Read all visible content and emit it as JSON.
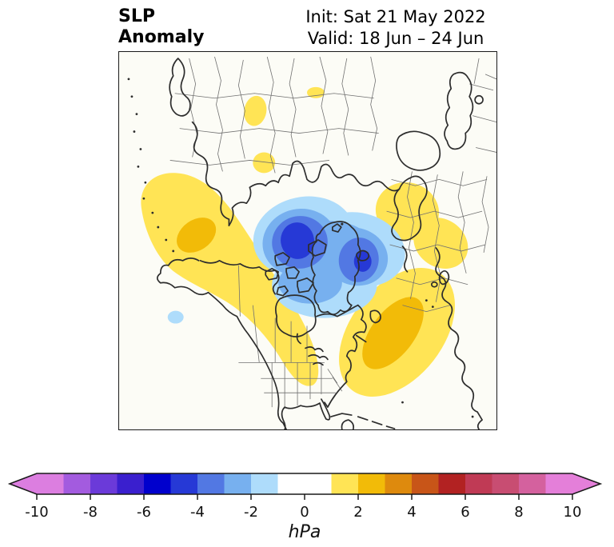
{
  "header": {
    "title_line1": "SLP",
    "title_line2": "Anomaly",
    "init_label": "Init: Sat 21 May 2022",
    "valid_label": "Valid: 18 Jun – 24 Jun"
  },
  "map": {
    "projection": "north-polar-stereographic",
    "background": "#FCFCF6",
    "coast_color": "#2d2d2d",
    "border_color": "#707070",
    "anomalies": [
      {
        "name": "arctic-negative-low",
        "sign": "negative",
        "peak_band_hpa": [
          -5,
          -4
        ],
        "location": "Canadian Arctic / Baffin Bay with secondary core east of Greenland",
        "colors": [
          "#AEDCFB",
          "#77B0EF",
          "#5278E3",
          "#2639D6"
        ]
      },
      {
        "name": "north-pacific-positive-band",
        "sign": "positive",
        "peak_band_hpa": [
          2,
          3
        ],
        "location": "Gulf of Alaska arcing to the northern US plains",
        "colors": [
          "#FFE455",
          "#F2BB08"
        ]
      },
      {
        "name": "north-atlantic-positive",
        "sign": "positive",
        "peak_band_hpa": [
          2,
          3
        ],
        "location": "Northwest Atlantic off the US east coast",
        "colors": [
          "#FFE455",
          "#F2BB08"
        ]
      },
      {
        "name": "north-europe-positive",
        "sign": "positive",
        "peak_band_hpa": [
          1,
          2
        ],
        "location": "Scandinavia / Baltic",
        "colors": [
          "#FFE455"
        ]
      },
      {
        "name": "siberia-positive-patches",
        "sign": "positive",
        "peak_band_hpa": [
          1,
          2
        ],
        "location": "small patches over Siberia",
        "colors": [
          "#FFE455"
        ]
      },
      {
        "name": "central-pacific-negative-spot",
        "sign": "negative",
        "peak_band_hpa": [
          -2,
          -1
        ],
        "location": "central North Pacific",
        "colors": [
          "#AEDCFB"
        ]
      }
    ]
  },
  "colorbar": {
    "unit": "hPa",
    "min": -10,
    "max": 10,
    "tick_step": 2,
    "ticks": [
      "-10",
      "-8",
      "-6",
      "-4",
      "-2",
      "0",
      "2",
      "4",
      "6",
      "8",
      "10"
    ],
    "extend_left_color": "#DC7EE0",
    "extend_right_color": "#E47FD9",
    "levels": [
      {
        "from": -10,
        "to": -9,
        "color": "#DC7EE0"
      },
      {
        "from": -9,
        "to": -8,
        "color": "#A35BDF"
      },
      {
        "from": -8,
        "to": -7,
        "color": "#6B3AD9"
      },
      {
        "from": -7,
        "to": -6,
        "color": "#3A1FCE"
      },
      {
        "from": -6,
        "to": -5,
        "color": "#0000CD"
      },
      {
        "from": -5,
        "to": -4,
        "color": "#2639D6"
      },
      {
        "from": -4,
        "to": -3,
        "color": "#5278E3"
      },
      {
        "from": -3,
        "to": -2,
        "color": "#77B0EF"
      },
      {
        "from": -2,
        "to": -1,
        "color": "#AEDCFB"
      },
      {
        "from": -1,
        "to": 0,
        "color": "#FFFFFF"
      },
      {
        "from": 0,
        "to": 1,
        "color": "#FFFFFF"
      },
      {
        "from": 1,
        "to": 2,
        "color": "#FFE455"
      },
      {
        "from": 2,
        "to": 3,
        "color": "#F2BB08"
      },
      {
        "from": 3,
        "to": 4,
        "color": "#DE8A0D"
      },
      {
        "from": 4,
        "to": 5,
        "color": "#C85518"
      },
      {
        "from": 5,
        "to": 6,
        "color": "#B22222"
      },
      {
        "from": 6,
        "to": 7,
        "color": "#C03A55"
      },
      {
        "from": 7,
        "to": 8,
        "color": "#C84D72"
      },
      {
        "from": 8,
        "to": 9,
        "color": "#D4619E"
      },
      {
        "from": 9,
        "to": 10,
        "color": "#E47FD9"
      }
    ]
  }
}
